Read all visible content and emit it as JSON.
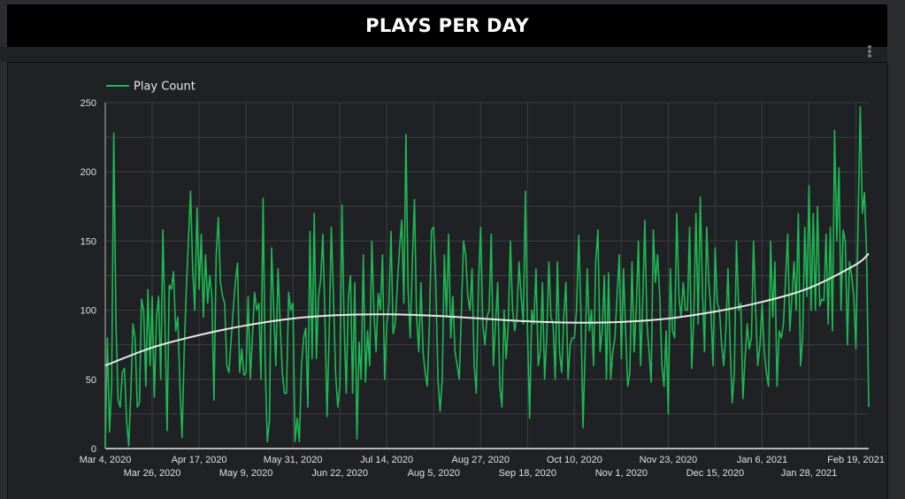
{
  "header": {
    "title": "PLAYS PER DAY",
    "menu_icon": "kebab-menu-icon"
  },
  "colors": {
    "series": "#1db954",
    "trend": "#e8e8e8",
    "grid": "#3c3d40",
    "background": "#202124"
  },
  "chart_data": {
    "type": "line",
    "title": "PLAYS PER DAY",
    "xlabel": "",
    "ylabel": "",
    "legend": [
      {
        "label": "Play Count",
        "color": "#1db954"
      }
    ],
    "legend_placement": "top-left",
    "grid": true,
    "start_date": "2020-03-04",
    "x_unit": "days since start",
    "xlim": [
      0,
      358
    ],
    "ylim": [
      0,
      250
    ],
    "y_ticks": [
      0,
      50,
      100,
      150,
      200,
      250
    ],
    "x_ticks": [
      {
        "day": 0,
        "label": "Mar 4, 2020"
      },
      {
        "day": 22,
        "label": "Mar 26, 2020"
      },
      {
        "day": 44,
        "label": "Apr 17, 2020"
      },
      {
        "day": 66,
        "label": "May 9, 2020"
      },
      {
        "day": 88,
        "label": "May 31, 2020"
      },
      {
        "day": 110,
        "label": "Jun 22, 2020"
      },
      {
        "day": 132,
        "label": "Jul 14, 2020"
      },
      {
        "day": 154,
        "label": "Aug 5, 2020"
      },
      {
        "day": 176,
        "label": "Aug 27, 2020"
      },
      {
        "day": 198,
        "label": "Sep 18, 2020"
      },
      {
        "day": 220,
        "label": "Oct 10, 2020"
      },
      {
        "day": 242,
        "label": "Nov 1, 2020"
      },
      {
        "day": 264,
        "label": "Nov 23, 2020"
      },
      {
        "day": 286,
        "label": "Dec 15, 2020"
      },
      {
        "day": 308,
        "label": "Jan 6, 2021"
      },
      {
        "day": 330,
        "label": "Jan 28, 2021"
      },
      {
        "day": 352,
        "label": "Feb 19, 2021"
      }
    ],
    "series": [
      {
        "name": "Play Count",
        "values": [
          0,
          80,
          12,
          45,
          228,
          90,
          35,
          30,
          55,
          58,
          20,
          2,
          40,
          90,
          80,
          30,
          33,
          108,
          100,
          45,
          115,
          60,
          110,
          37,
          95,
          110,
          50,
          158,
          90,
          13,
          118,
          115,
          128,
          85,
          95,
          45,
          8,
          70,
          115,
          150,
          186,
          130,
          100,
          174,
          115,
          155,
          95,
          140,
          105,
          125,
          110,
          35,
          140,
          167,
          120,
          110,
          105,
          60,
          55,
          78,
          100,
          120,
          134,
          55,
          72,
          53,
          55,
          110,
          50,
          80,
          113,
          100,
          105,
          50,
          181,
          60,
          5,
          20,
          145,
          100,
          60,
          130,
          90,
          55,
          40,
          40,
          113,
          100,
          105,
          5,
          22,
          5,
          60,
          80,
          87,
          30,
          157,
          65,
          170,
          65,
          110,
          122,
          155,
          95,
          23,
          83,
          160,
          110,
          55,
          30,
          45,
          176,
          90,
          40,
          110,
          125,
          40,
          120,
          7,
          77,
          50,
          140,
          48,
          85,
          60,
          150,
          98,
          70,
          112,
          100,
          140,
          50,
          90,
          103,
          157,
          83,
          90,
          120,
          145,
          165,
          105,
          227,
          115,
          80,
          135,
          180,
          95,
          70,
          120,
          70,
          55,
          45,
          90,
          158,
          160,
          120,
          50,
          27,
          50,
          140,
          95,
          155,
          80,
          110,
          70,
          60,
          50,
          100,
          150,
          140,
          110,
          100,
          130,
          60,
          40,
          120,
          160,
          90,
          75,
          95,
          100,
          155,
          60,
          90,
          120,
          45,
          30,
          100,
          65,
          90,
          150,
          100,
          85,
          95,
          135,
          110,
          90,
          186,
          85,
          22,
          100,
          90,
          130,
          60,
          70,
          120,
          50,
          80,
          135,
          95,
          90,
          50,
          135,
          70,
          55,
          95,
          120,
          50,
          75,
          80,
          80,
          100,
          154,
          100,
          15,
          70,
          130,
          85,
          100,
          60,
          135,
          158,
          70,
          85,
          125,
          50,
          127,
          50,
          70,
          80,
          110,
          140,
          65,
          130,
          85,
          45,
          55,
          135,
          70,
          100,
          150,
          60,
          105,
          165,
          90,
          70,
          48,
          158,
          120,
          140,
          110,
          60,
          45,
          85,
          25,
          130,
          85,
          80,
          170,
          110,
          95,
          120,
          100,
          100,
          160,
          58,
          95,
          170,
          90,
          182,
          115,
          70,
          160,
          120,
          100,
          60,
          145,
          105,
          100,
          75,
          60,
          85,
          130,
          75,
          33,
          55,
          150,
          100,
          105,
          36,
          65,
          90,
          72,
          80,
          150,
          100,
          60,
          75,
          105,
          70,
          55,
          45,
          150,
          95,
          135,
          45,
          85,
          80,
          90,
          122,
          155,
          85,
          110,
          135,
          100,
          170,
          60,
          80,
          160,
          110,
          190,
          100,
          170,
          100,
          175,
          103,
          108,
          107,
          155,
          90,
          160,
          85,
          230,
          150,
          203,
          100,
          158,
          150,
          75,
          135,
          125,
          110,
          72,
          160,
          247,
          170,
          185,
          140,
          30
        ]
      },
      {
        "name": "Trend",
        "points": [
          [
            0,
            60
          ],
          [
            22,
            73
          ],
          [
            44,
            82
          ],
          [
            66,
            89
          ],
          [
            88,
            94
          ],
          [
            110,
            96.5
          ],
          [
            132,
            97
          ],
          [
            154,
            96
          ],
          [
            176,
            94
          ],
          [
            198,
            92
          ],
          [
            220,
            91
          ],
          [
            242,
            91.5
          ],
          [
            264,
            94
          ],
          [
            286,
            99
          ],
          [
            308,
            106
          ],
          [
            330,
            116
          ],
          [
            352,
            133
          ],
          [
            358,
            141
          ]
        ]
      }
    ]
  }
}
